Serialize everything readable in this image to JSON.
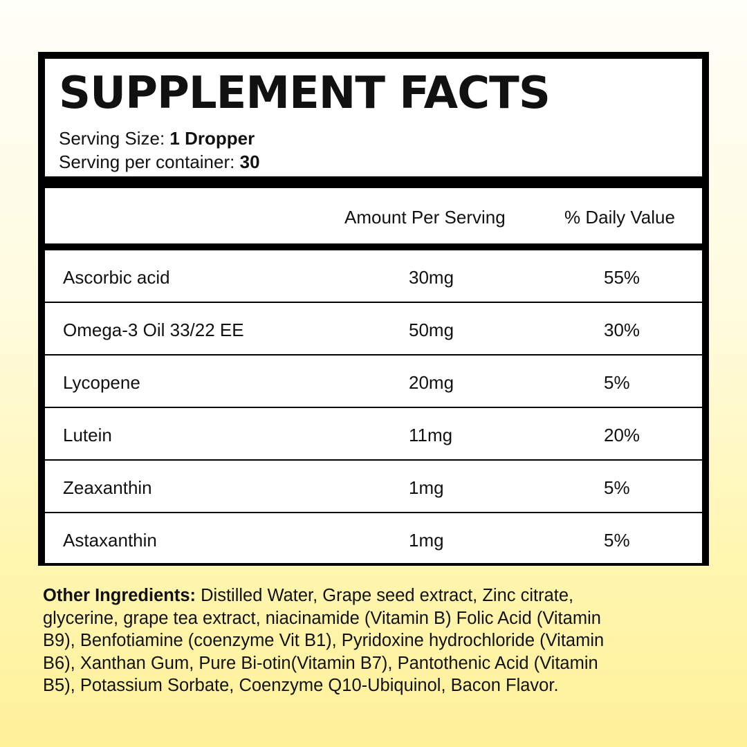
{
  "title": "SUPPLEMENT FACTS",
  "serving_size": {
    "label": "Serving Size:",
    "value": "1 Dropper"
  },
  "servings_per_container": {
    "label": "Serving per container:",
    "value": "30"
  },
  "columns": {
    "amount": "Amount Per Serving",
    "daily_value": "% Daily Value"
  },
  "rows": [
    {
      "name": "Ascorbic acid",
      "amount": "30mg",
      "dv": "55%"
    },
    {
      "name": "Omega-3 Oil 33/22 EE",
      "amount": "50mg",
      "dv": "30%"
    },
    {
      "name": "Lycopene",
      "amount": "20mg",
      "dv": "5%"
    },
    {
      "name": "Lutein",
      "amount": "11mg",
      "dv": "20%"
    },
    {
      "name": "Zeaxanthin",
      "amount": "1mg",
      "dv": "5%"
    },
    {
      "name": "Astaxanthin",
      "amount": "1mg",
      "dv": "5%"
    }
  ],
  "other_ingredients": {
    "label": "Other Ingredients:",
    "lines": [
      " Distilled Water, Grape seed extract, Zinc citrate,",
      "glycerine, grape tea extract, niacinamide (Vitamin B) Folic Acid (Vitamin",
      "B9), Benfotiamine (coenzyme Vit B1), Pyridoxine hydrochloride (Vitamin",
      "B6), Xanthan Gum, Pure Bi-otin(Vitamin B7), Pantothenic Acid (Vitamin",
      "B5), Potassium Sorbate, Coenzyme Q10-Ubiquinol, Bacon Flavor."
    ]
  }
}
